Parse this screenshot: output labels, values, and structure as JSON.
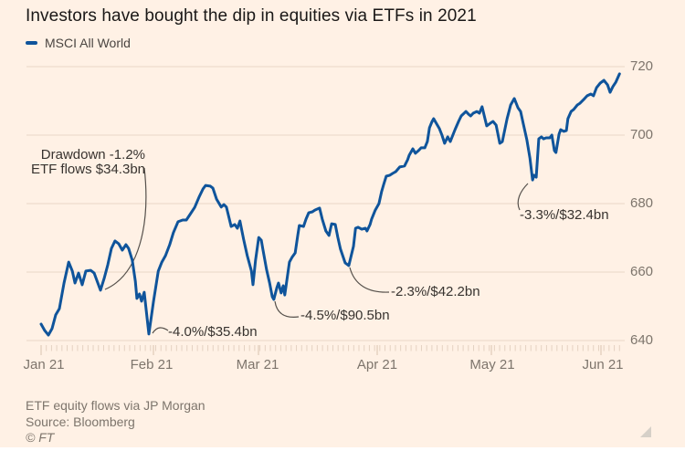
{
  "title": "Investors have bought the dip in equities via ETFs in 2021",
  "legend": {
    "label": "MSCI All World",
    "color": "#0f549b"
  },
  "footer": {
    "note": "ETF equity flows via JP Morgan",
    "source": "Source: Bloomberg",
    "copyright": "© FT"
  },
  "colors": {
    "background": "#fff1e5",
    "line": "#0f549b",
    "gridline": "#e9d8c8",
    "tick_minor": "#e4d1c1",
    "tick_major": "#d9c3b0",
    "connector": "#55504b",
    "axis_text": "#7d756c",
    "annotation_text": "#37332f",
    "resize_handle": "#d6d0c8"
  },
  "chart_data": {
    "type": "line",
    "title": "Investors have bought the dip in equities via ETFs in 2021",
    "ylabel": "",
    "xlabel": "",
    "ylim": [
      640,
      720
    ],
    "yticks": [
      720,
      700,
      680,
      660,
      640
    ],
    "grid": "horizontal",
    "legend_position": "top-left",
    "x_axis": {
      "unit": "trading-day index, Jan–Jun 2021",
      "months": [
        {
          "label": "Jan 21"
        },
        {
          "label": "Feb 21"
        },
        {
          "label": "Mar 21"
        },
        {
          "label": "Apr 21"
        },
        {
          "label": "May 21"
        },
        {
          "label": "Jun 21"
        }
      ]
    },
    "series": [
      {
        "name": "MSCI All World",
        "color": "#0f549b",
        "points": [
          [
            0,
            644.8
          ],
          [
            0.7,
            642.9
          ],
          [
            1.4,
            641.6
          ],
          [
            2.1,
            643.5
          ],
          [
            2.8,
            647.5
          ],
          [
            3.5,
            649.3
          ],
          [
            4.4,
            656.8
          ],
          [
            5.3,
            662.9
          ],
          [
            6,
            660.3
          ],
          [
            6.5,
            656.8
          ],
          [
            7.2,
            659.7
          ],
          [
            7.9,
            656.3
          ],
          [
            8.6,
            660.3
          ],
          [
            9.5,
            660.5
          ],
          [
            10.2,
            659.7
          ],
          [
            10.9,
            656.8
          ],
          [
            11.4,
            654.7
          ],
          [
            12.1,
            658.1
          ],
          [
            12.8,
            662.1
          ],
          [
            13.5,
            666.9
          ],
          [
            14.2,
            669.1
          ],
          [
            14.9,
            668.3
          ],
          [
            15.6,
            666.4
          ],
          [
            16.3,
            668
          ],
          [
            16.8,
            666.9
          ],
          [
            17.5,
            663.5
          ],
          [
            18.1,
            657.3
          ],
          [
            18.4,
            652.3
          ],
          [
            18.9,
            653.6
          ],
          [
            19.3,
            651.5
          ],
          [
            19.8,
            654.1
          ],
          [
            20.7,
            641.9
          ],
          [
            21.6,
            651.5
          ],
          [
            22.5,
            660.3
          ],
          [
            23.2,
            662.9
          ],
          [
            23.9,
            664.8
          ],
          [
            24.7,
            668
          ],
          [
            25.4,
            671.5
          ],
          [
            26.3,
            674.7
          ],
          [
            27.2,
            675.2
          ],
          [
            27.9,
            675.2
          ],
          [
            28.6,
            676.8
          ],
          [
            29.5,
            678.9
          ],
          [
            30.4,
            682.1
          ],
          [
            31.1,
            684.3
          ],
          [
            31.6,
            685.3
          ],
          [
            32.5,
            685.1
          ],
          [
            33,
            684.5
          ],
          [
            33.7,
            681.3
          ],
          [
            34.6,
            679
          ],
          [
            35.1,
            679.7
          ],
          [
            35.6,
            679
          ],
          [
            36.5,
            673.3
          ],
          [
            37.2,
            673.9
          ],
          [
            37.7,
            672.8
          ],
          [
            38.2,
            674.9
          ],
          [
            38.9,
            669.6
          ],
          [
            39.6,
            664.8
          ],
          [
            40.4,
            660.3
          ],
          [
            40.7,
            656.3
          ],
          [
            41.2,
            663.5
          ],
          [
            41.8,
            670.1
          ],
          [
            42.3,
            669.3
          ],
          [
            42.6,
            666.7
          ],
          [
            43.3,
            660.8
          ],
          [
            43.9,
            656.8
          ],
          [
            44.4,
            652.8
          ],
          [
            44.7,
            652
          ],
          [
            45.3,
            655.5
          ],
          [
            45.6,
            656.8
          ],
          [
            46.1,
            653.9
          ],
          [
            46.5,
            656
          ],
          [
            46.8,
            653.3
          ],
          [
            47.7,
            662.9
          ],
          [
            48.2,
            664.3
          ],
          [
            48.8,
            665.6
          ],
          [
            49.3,
            670.7
          ],
          [
            49.6,
            673.6
          ],
          [
            50.4,
            673.3
          ],
          [
            50.9,
            675.5
          ],
          [
            51.4,
            677.3
          ],
          [
            52.1,
            677.6
          ],
          [
            52.6,
            678.1
          ],
          [
            53.5,
            678.7
          ],
          [
            54,
            675.5
          ],
          [
            54.7,
            672
          ],
          [
            55.3,
            670.7
          ],
          [
            55.8,
            674.1
          ],
          [
            56.5,
            673.9
          ],
          [
            57,
            670.1
          ],
          [
            57.5,
            666.7
          ],
          [
            58.4,
            662.7
          ],
          [
            59.1,
            661.9
          ],
          [
            60,
            667.5
          ],
          [
            60.4,
            672.8
          ],
          [
            60.9,
            673.1
          ],
          [
            61.6,
            672.5
          ],
          [
            62.3,
            672.8
          ],
          [
            62.6,
            672
          ],
          [
            63.2,
            673.9
          ],
          [
            63.5,
            675.5
          ],
          [
            64.2,
            678.1
          ],
          [
            64.9,
            680
          ],
          [
            65.4,
            683.5
          ],
          [
            65.8,
            685.6
          ],
          [
            66.3,
            688
          ],
          [
            67,
            688.3
          ],
          [
            67.5,
            688.8
          ],
          [
            68.1,
            689.3
          ],
          [
            68.9,
            690.7
          ],
          [
            69.8,
            691
          ],
          [
            70.4,
            692.8
          ],
          [
            70.7,
            694.1
          ],
          [
            71.4,
            696
          ],
          [
            71.9,
            694.7
          ],
          [
            72.5,
            695.5
          ],
          [
            73,
            696.3
          ],
          [
            73.7,
            696.3
          ],
          [
            74.2,
            698.1
          ],
          [
            74.6,
            702.1
          ],
          [
            75.1,
            704
          ],
          [
            75.4,
            704.8
          ],
          [
            75.9,
            703.5
          ],
          [
            76.5,
            701.9
          ],
          [
            77,
            700
          ],
          [
            77.5,
            697.6
          ],
          [
            78.1,
            699.5
          ],
          [
            78.6,
            698.1
          ],
          [
            79.5,
            701.6
          ],
          [
            80.2,
            704
          ],
          [
            80.7,
            705.6
          ],
          [
            81.6,
            706.9
          ],
          [
            82.1,
            706.1
          ],
          [
            82.5,
            705.6
          ],
          [
            83,
            706.4
          ],
          [
            83.7,
            706.9
          ],
          [
            84.2,
            706.4
          ],
          [
            84.7,
            708.3
          ],
          [
            85.6,
            702.7
          ],
          [
            86.3,
            703.5
          ],
          [
            86.8,
            704
          ],
          [
            87.4,
            702.9
          ],
          [
            88.1,
            697.6
          ],
          [
            88.6,
            698.1
          ],
          [
            89.5,
            704.8
          ],
          [
            90.2,
            708.8
          ],
          [
            90.9,
            710.7
          ],
          [
            91.6,
            708
          ],
          [
            92.1,
            706.9
          ],
          [
            92.6,
            703.5
          ],
          [
            93.3,
            698.7
          ],
          [
            93.9,
            693.3
          ],
          [
            94.4,
            686.9
          ],
          [
            94.7,
            688.3
          ],
          [
            95.1,
            687.7
          ],
          [
            95.6,
            698.9
          ],
          [
            96.1,
            699.5
          ],
          [
            96.5,
            698.9
          ],
          [
            97,
            699.2
          ],
          [
            97.7,
            699.2
          ],
          [
            98.1,
            700
          ],
          [
            98.6,
            695.5
          ],
          [
            98.9,
            694.9
          ],
          [
            99.5,
            700.3
          ],
          [
            99.8,
            701.6
          ],
          [
            100.4,
            701.1
          ],
          [
            100.9,
            701.3
          ],
          [
            101.2,
            704.8
          ],
          [
            101.8,
            706.9
          ],
          [
            102.3,
            707.5
          ],
          [
            103,
            708.8
          ],
          [
            103.5,
            709.3
          ],
          [
            104.4,
            710.7
          ],
          [
            104.9,
            711.5
          ],
          [
            105.6,
            712
          ],
          [
            106.1,
            711.5
          ],
          [
            106.7,
            713.9
          ],
          [
            107.4,
            715.2
          ],
          [
            108.1,
            716
          ],
          [
            108.8,
            714.7
          ],
          [
            109.3,
            712.5
          ],
          [
            109.8,
            714.1
          ],
          [
            110.4,
            715.5
          ],
          [
            111.1,
            717.9
          ]
        ]
      }
    ],
    "annotations": [
      {
        "lines": [
          "Drawdown -1.2%",
          "ETF flows $34.3bn"
        ],
        "target_day": 11.4,
        "target_value": 654.7
      },
      {
        "lines": [
          "-4.0%/$35.4bn"
        ],
        "target_day": 20.7,
        "target_value": 641.9
      },
      {
        "lines": [
          "-4.5%/$90.5bn"
        ],
        "target_day": 44.7,
        "target_value": 652.0
      },
      {
        "lines": [
          "-2.3%/$42.2bn"
        ],
        "target_day": 59.1,
        "target_value": 661.9
      },
      {
        "lines": [
          "-3.3%/$32.4bn"
        ],
        "target_day": 94.4,
        "target_value": 686.9
      }
    ]
  }
}
